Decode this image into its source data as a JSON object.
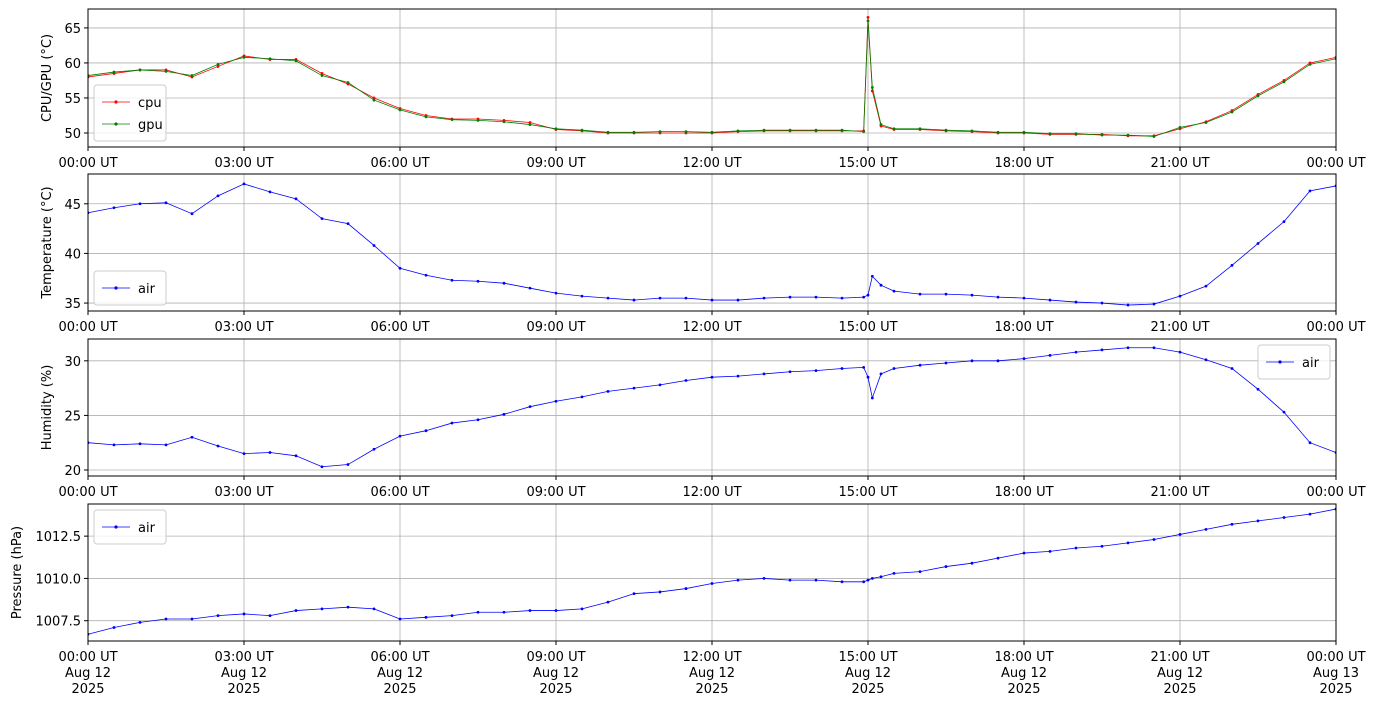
{
  "chart_data": [
    {
      "type": "line",
      "ylabel": "CPU/GPU (°C)",
      "legend": "lower left",
      "grid": true,
      "x": [
        "2025-08-12T00:00",
        "2025-08-12T00:30",
        "2025-08-12T01:00",
        "2025-08-12T01:30",
        "2025-08-12T02:00",
        "2025-08-12T02:30",
        "2025-08-12T03:00",
        "2025-08-12T03:30",
        "2025-08-12T04:00",
        "2025-08-12T04:30",
        "2025-08-12T05:00",
        "2025-08-12T05:30",
        "2025-08-12T06:00",
        "2025-08-12T06:30",
        "2025-08-12T07:00",
        "2025-08-12T07:30",
        "2025-08-12T08:00",
        "2025-08-12T08:30",
        "2025-08-12T09:00",
        "2025-08-12T09:30",
        "2025-08-12T10:00",
        "2025-08-12T10:30",
        "2025-08-12T11:00",
        "2025-08-12T11:30",
        "2025-08-12T12:00",
        "2025-08-12T12:30",
        "2025-08-12T13:00",
        "2025-08-12T13:30",
        "2025-08-12T14:00",
        "2025-08-12T14:30",
        "2025-08-12T14:55",
        "2025-08-12T15:00",
        "2025-08-12T15:05",
        "2025-08-12T15:15",
        "2025-08-12T15:30",
        "2025-08-12T16:00",
        "2025-08-12T16:30",
        "2025-08-12T17:00",
        "2025-08-12T17:30",
        "2025-08-12T18:00",
        "2025-08-12T18:30",
        "2025-08-12T19:00",
        "2025-08-12T19:30",
        "2025-08-12T20:00",
        "2025-08-12T20:30",
        "2025-08-12T21:00",
        "2025-08-12T21:30",
        "2025-08-12T22:00",
        "2025-08-12T22:30",
        "2025-08-12T23:00",
        "2025-08-12T23:30",
        "2025-08-13T00:00"
      ],
      "series": [
        {
          "name": "cpu",
          "color": "#ff0000",
          "values": [
            58,
            58.5,
            59,
            59,
            58,
            59.5,
            61,
            60.5,
            60.5,
            58.5,
            57,
            55,
            53.5,
            52.5,
            52,
            52,
            51.8,
            51.5,
            50.5,
            50.3,
            50,
            50,
            50,
            50,
            50,
            50.2,
            50.3,
            50.3,
            50.3,
            50.3,
            50.3,
            66.5,
            56,
            51,
            50.5,
            50.5,
            50.3,
            50.2,
            50,
            50,
            49.8,
            49.8,
            49.8,
            49.6,
            49.6,
            50.6,
            51.6,
            53.2,
            55.5,
            57.5,
            60,
            60.8
          ]
        },
        {
          "name": "gpu",
          "color": "#008000",
          "values": [
            58.2,
            58.7,
            59,
            58.8,
            58.2,
            59.8,
            60.8,
            60.6,
            60.3,
            58.2,
            57.2,
            54.7,
            53.3,
            52.3,
            51.9,
            51.8,
            51.6,
            51.2,
            50.6,
            50.4,
            50.1,
            50.1,
            50.2,
            50.2,
            50.1,
            50.3,
            50.4,
            50.4,
            50.4,
            50.4,
            50.2,
            66,
            56.5,
            51.2,
            50.6,
            50.6,
            50.4,
            50.3,
            50.1,
            50.1,
            49.9,
            49.9,
            49.7,
            49.7,
            49.5,
            50.8,
            51.5,
            53,
            55.3,
            57.3,
            59.8,
            60.6
          ]
        }
      ],
      "xlim": [
        "2025-08-12T00:00",
        "2025-08-13T00:00"
      ],
      "xticks": [
        {
          "value": "2025-08-12T00:00",
          "label": "00:00 UT"
        },
        {
          "value": "2025-08-12T03:00",
          "label": "03:00 UT"
        },
        {
          "value": "2025-08-12T06:00",
          "label": "06:00 UT"
        },
        {
          "value": "2025-08-12T09:00",
          "label": "09:00 UT"
        },
        {
          "value": "2025-08-12T12:00",
          "label": "12:00 UT"
        },
        {
          "value": "2025-08-12T15:00",
          "label": "15:00 UT"
        },
        {
          "value": "2025-08-12T18:00",
          "label": "18:00 UT"
        },
        {
          "value": "2025-08-12T21:00",
          "label": "21:00 UT"
        },
        {
          "value": "2025-08-13T00:00",
          "label": "00:00 UT"
        }
      ],
      "ylim": [
        48,
        67.7
      ],
      "yticks": [
        50,
        55,
        60,
        65
      ]
    },
    {
      "type": "line",
      "ylabel": "Temperature (°C)",
      "legend": "lower left",
      "grid": true,
      "x": [
        "2025-08-12T00:00",
        "2025-08-12T00:30",
        "2025-08-12T01:00",
        "2025-08-12T01:30",
        "2025-08-12T02:00",
        "2025-08-12T02:30",
        "2025-08-12T03:00",
        "2025-08-12T03:30",
        "2025-08-12T04:00",
        "2025-08-12T04:30",
        "2025-08-12T05:00",
        "2025-08-12T05:30",
        "2025-08-12T06:00",
        "2025-08-12T06:30",
        "2025-08-12T07:00",
        "2025-08-12T07:30",
        "2025-08-12T08:00",
        "2025-08-12T08:30",
        "2025-08-12T09:00",
        "2025-08-12T09:30",
        "2025-08-12T10:00",
        "2025-08-12T10:30",
        "2025-08-12T11:00",
        "2025-08-12T11:30",
        "2025-08-12T12:00",
        "2025-08-12T12:30",
        "2025-08-12T13:00",
        "2025-08-12T13:30",
        "2025-08-12T14:00",
        "2025-08-12T14:30",
        "2025-08-12T14:55",
        "2025-08-12T15:00",
        "2025-08-12T15:05",
        "2025-08-12T15:15",
        "2025-08-12T15:30",
        "2025-08-12T16:00",
        "2025-08-12T16:30",
        "2025-08-12T17:00",
        "2025-08-12T17:30",
        "2025-08-12T18:00",
        "2025-08-12T18:30",
        "2025-08-12T19:00",
        "2025-08-12T19:30",
        "2025-08-12T20:00",
        "2025-08-12T20:30",
        "2025-08-12T21:00",
        "2025-08-12T21:30",
        "2025-08-12T22:00",
        "2025-08-12T22:30",
        "2025-08-12T23:00",
        "2025-08-12T23:30",
        "2025-08-13T00:00"
      ],
      "series": [
        {
          "name": "air",
          "color": "#0000ff",
          "values": [
            44.1,
            44.6,
            45,
            45.1,
            44,
            45.8,
            47,
            46.2,
            45.5,
            43.5,
            43,
            40.8,
            38.5,
            37.8,
            37.3,
            37.2,
            37,
            36.5,
            36,
            35.7,
            35.5,
            35.3,
            35.5,
            35.5,
            35.3,
            35.3,
            35.5,
            35.6,
            35.6,
            35.5,
            35.6,
            35.8,
            37.7,
            36.8,
            36.2,
            35.9,
            35.9,
            35.8,
            35.6,
            35.5,
            35.3,
            35.1,
            35,
            34.8,
            34.9,
            35.7,
            36.7,
            38.8,
            41,
            43.2,
            46.3,
            46.8
          ]
        }
      ],
      "xlim": [
        "2025-08-12T00:00",
        "2025-08-13T00:00"
      ],
      "xticks": [
        {
          "value": "2025-08-12T00:00",
          "label": "00:00 UT"
        },
        {
          "value": "2025-08-12T03:00",
          "label": "03:00 UT"
        },
        {
          "value": "2025-08-12T06:00",
          "label": "06:00 UT"
        },
        {
          "value": "2025-08-12T09:00",
          "label": "09:00 UT"
        },
        {
          "value": "2025-08-12T12:00",
          "label": "12:00 UT"
        },
        {
          "value": "2025-08-12T15:00",
          "label": "15:00 UT"
        },
        {
          "value": "2025-08-12T18:00",
          "label": "18:00 UT"
        },
        {
          "value": "2025-08-12T21:00",
          "label": "21:00 UT"
        },
        {
          "value": "2025-08-13T00:00",
          "label": "00:00 UT"
        }
      ],
      "ylim": [
        34.2,
        48
      ],
      "yticks": [
        35,
        40,
        45
      ]
    },
    {
      "type": "line",
      "ylabel": "Humidity (%)",
      "legend": "upper right",
      "grid": true,
      "x": [
        "2025-08-12T00:00",
        "2025-08-12T00:30",
        "2025-08-12T01:00",
        "2025-08-12T01:30",
        "2025-08-12T02:00",
        "2025-08-12T02:30",
        "2025-08-12T03:00",
        "2025-08-12T03:30",
        "2025-08-12T04:00",
        "2025-08-12T04:30",
        "2025-08-12T05:00",
        "2025-08-12T05:30",
        "2025-08-12T06:00",
        "2025-08-12T06:30",
        "2025-08-12T07:00",
        "2025-08-12T07:30",
        "2025-08-12T08:00",
        "2025-08-12T08:30",
        "2025-08-12T09:00",
        "2025-08-12T09:30",
        "2025-08-12T10:00",
        "2025-08-12T10:30",
        "2025-08-12T11:00",
        "2025-08-12T11:30",
        "2025-08-12T12:00",
        "2025-08-12T12:30",
        "2025-08-12T13:00",
        "2025-08-12T13:30",
        "2025-08-12T14:00",
        "2025-08-12T14:30",
        "2025-08-12T14:55",
        "2025-08-12T15:00",
        "2025-08-12T15:05",
        "2025-08-12T15:15",
        "2025-08-12T15:30",
        "2025-08-12T16:00",
        "2025-08-12T16:30",
        "2025-08-12T17:00",
        "2025-08-12T17:30",
        "2025-08-12T18:00",
        "2025-08-12T18:30",
        "2025-08-12T19:00",
        "2025-08-12T19:30",
        "2025-08-12T20:00",
        "2025-08-12T20:30",
        "2025-08-12T21:00",
        "2025-08-12T21:30",
        "2025-08-12T22:00",
        "2025-08-12T22:30",
        "2025-08-12T23:00",
        "2025-08-12T23:30",
        "2025-08-13T00:00"
      ],
      "series": [
        {
          "name": "air",
          "color": "#0000ff",
          "values": [
            22.5,
            22.3,
            22.4,
            22.3,
            23,
            22.2,
            21.5,
            21.6,
            21.3,
            20.3,
            20.5,
            21.9,
            23.1,
            23.6,
            24.3,
            24.6,
            25.1,
            25.8,
            26.3,
            26.7,
            27.2,
            27.5,
            27.8,
            28.2,
            28.5,
            28.6,
            28.8,
            29,
            29.1,
            29.3,
            29.4,
            28.5,
            26.6,
            28.8,
            29.3,
            29.6,
            29.8,
            30,
            30,
            30.2,
            30.5,
            30.8,
            31,
            31.2,
            31.2,
            30.8,
            30.1,
            29.3,
            27.4,
            25.3,
            22.5,
            21.6
          ]
        }
      ],
      "xlim": [
        "2025-08-12T00:00",
        "2025-08-13T00:00"
      ],
      "xticks": [
        {
          "value": "2025-08-12T00:00",
          "label": "00:00 UT"
        },
        {
          "value": "2025-08-12T03:00",
          "label": "03:00 UT"
        },
        {
          "value": "2025-08-12T06:00",
          "label": "06:00 UT"
        },
        {
          "value": "2025-08-12T09:00",
          "label": "09:00 UT"
        },
        {
          "value": "2025-08-12T12:00",
          "label": "12:00 UT"
        },
        {
          "value": "2025-08-12T15:00",
          "label": "15:00 UT"
        },
        {
          "value": "2025-08-12T18:00",
          "label": "18:00 UT"
        },
        {
          "value": "2025-08-12T21:00",
          "label": "21:00 UT"
        },
        {
          "value": "2025-08-13T00:00",
          "label": "00:00 UT"
        }
      ],
      "ylim": [
        19.45,
        32
      ],
      "yticks": [
        20,
        25,
        30
      ]
    },
    {
      "type": "line",
      "ylabel": "Pressure (hPa)",
      "legend": "upper left",
      "grid": true,
      "x": [
        "2025-08-12T00:00",
        "2025-08-12T00:30",
        "2025-08-12T01:00",
        "2025-08-12T01:30",
        "2025-08-12T02:00",
        "2025-08-12T02:30",
        "2025-08-12T03:00",
        "2025-08-12T03:30",
        "2025-08-12T04:00",
        "2025-08-12T04:30",
        "2025-08-12T05:00",
        "2025-08-12T05:30",
        "2025-08-12T06:00",
        "2025-08-12T06:30",
        "2025-08-12T07:00",
        "2025-08-12T07:30",
        "2025-08-12T08:00",
        "2025-08-12T08:30",
        "2025-08-12T09:00",
        "2025-08-12T09:30",
        "2025-08-12T10:00",
        "2025-08-12T10:30",
        "2025-08-12T11:00",
        "2025-08-12T11:30",
        "2025-08-12T12:00",
        "2025-08-12T12:30",
        "2025-08-12T13:00",
        "2025-08-12T13:30",
        "2025-08-12T14:00",
        "2025-08-12T14:30",
        "2025-08-12T14:55",
        "2025-08-12T15:00",
        "2025-08-12T15:05",
        "2025-08-12T15:15",
        "2025-08-12T15:30",
        "2025-08-12T16:00",
        "2025-08-12T16:30",
        "2025-08-12T17:00",
        "2025-08-12T17:30",
        "2025-08-12T18:00",
        "2025-08-12T18:30",
        "2025-08-12T19:00",
        "2025-08-12T19:30",
        "2025-08-12T20:00",
        "2025-08-12T20:30",
        "2025-08-12T21:00",
        "2025-08-12T21:30",
        "2025-08-12T22:00",
        "2025-08-12T22:30",
        "2025-08-12T23:00",
        "2025-08-12T23:30",
        "2025-08-13T00:00"
      ],
      "series": [
        {
          "name": "air",
          "color": "#0000ff",
          "values": [
            1006.7,
            1007.1,
            1007.4,
            1007.6,
            1007.6,
            1007.8,
            1007.9,
            1007.8,
            1008.1,
            1008.2,
            1008.3,
            1008.2,
            1007.6,
            1007.7,
            1007.8,
            1008,
            1008,
            1008.1,
            1008.1,
            1008.2,
            1008.6,
            1009.1,
            1009.2,
            1009.4,
            1009.7,
            1009.9,
            1010,
            1009.9,
            1009.9,
            1009.8,
            1009.8,
            1009.9,
            1010,
            1010.1,
            1010.3,
            1010.4,
            1010.7,
            1010.9,
            1011.2,
            1011.5,
            1011.6,
            1011.8,
            1011.9,
            1012.1,
            1012.3,
            1012.6,
            1012.9,
            1013.2,
            1013.4,
            1013.6,
            1013.8,
            1014.1
          ]
        }
      ],
      "xlim": [
        "2025-08-12T00:00",
        "2025-08-13T00:00"
      ],
      "xticks": [
        {
          "value": "2025-08-12T00:00",
          "label": "00:00 UT\nAug 12\n2025"
        },
        {
          "value": "2025-08-12T03:00",
          "label": "03:00 UT\nAug 12\n2025"
        },
        {
          "value": "2025-08-12T06:00",
          "label": "06:00 UT\nAug 12\n2025"
        },
        {
          "value": "2025-08-12T09:00",
          "label": "09:00 UT\nAug 12\n2025"
        },
        {
          "value": "2025-08-12T12:00",
          "label": "12:00 UT\nAug 12\n2025"
        },
        {
          "value": "2025-08-12T15:00",
          "label": "15:00 UT\nAug 12\n2025"
        },
        {
          "value": "2025-08-12T18:00",
          "label": "18:00 UT\nAug 12\n2025"
        },
        {
          "value": "2025-08-12T21:00",
          "label": "21:00 UT\nAug 12\n2025"
        },
        {
          "value": "2025-08-13T00:00",
          "label": "00:00 UT\nAug 13\n2025"
        }
      ],
      "ylim": [
        1006.3,
        1014.4
      ],
      "yticks": [
        1007.5,
        {
          "value": 1010,
          "label": "1010.0"
        },
        1012.5
      ]
    }
  ]
}
